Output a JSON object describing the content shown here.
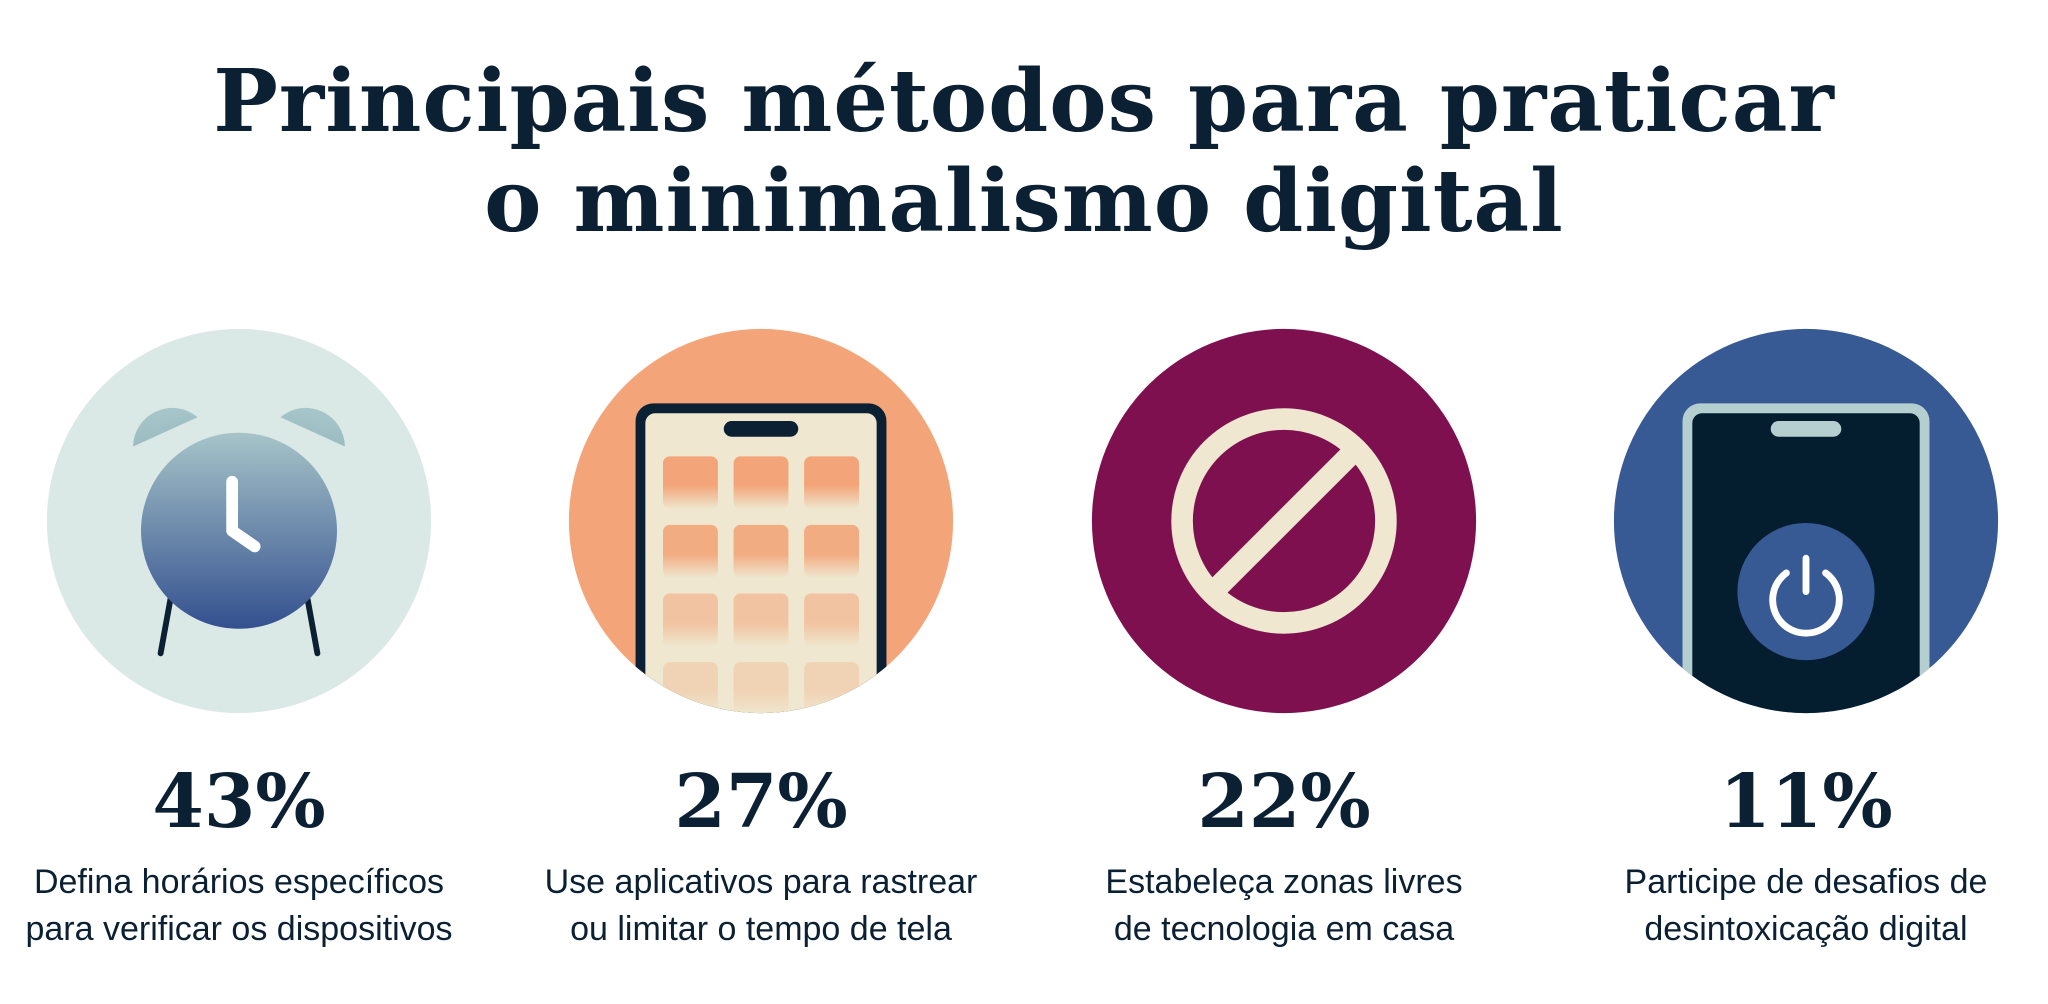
{
  "title": {
    "line1": "Principais métodos para praticar",
    "line2": "o minimalismo digital"
  },
  "items": [
    {
      "percent": "43%",
      "line1": "Defina horários específicos",
      "line2": "para verificar os dispositivos",
      "icon": "alarm-clock-icon",
      "color": "#dae8e6"
    },
    {
      "percent": "27%",
      "line1": "Use aplicativos para rastrear",
      "line2": "ou limitar o tempo de tela",
      "icon": "smartphone-apps-icon",
      "color": "#f3a579"
    },
    {
      "percent": "22%",
      "line1": "Estabeleça zonas livres",
      "line2": "de tecnologia em casa",
      "icon": "prohibited-icon",
      "color": "#7e1050"
    },
    {
      "percent": "11%",
      "line1": "Participe de desafios de",
      "line2": "desintoxicação digital",
      "icon": "phone-power-icon",
      "color": "#385a94"
    }
  ]
}
